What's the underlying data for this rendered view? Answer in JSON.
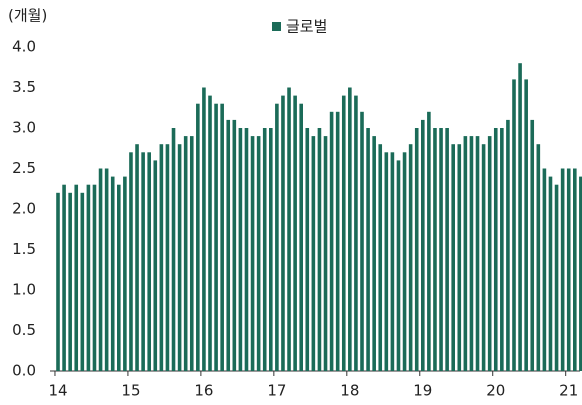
{
  "chart_data": {
    "type": "bar",
    "y_axis_label": "(개월)",
    "series": [
      {
        "name": "글로벌",
        "color": "#1b6b58",
        "values": [
          2.2,
          2.3,
          2.2,
          2.3,
          2.2,
          2.3,
          2.3,
          2.5,
          2.5,
          2.4,
          2.3,
          2.4,
          2.7,
          2.8,
          2.7,
          2.7,
          2.6,
          2.8,
          2.8,
          3.0,
          2.8,
          2.9,
          2.9,
          3.3,
          3.5,
          3.4,
          3.3,
          3.3,
          3.1,
          3.1,
          3.0,
          3.0,
          2.9,
          2.9,
          3.0,
          3.0,
          3.3,
          3.4,
          3.5,
          3.4,
          3.3,
          3.0,
          2.9,
          3.0,
          2.9,
          3.2,
          3.2,
          3.4,
          3.5,
          3.4,
          3.2,
          3.0,
          2.9,
          2.8,
          2.7,
          2.7,
          2.6,
          2.7,
          2.8,
          3.0,
          3.1,
          3.2,
          3.0,
          3.0,
          3.0,
          2.8,
          2.8,
          2.9,
          2.9,
          2.9,
          2.8,
          2.9,
          3.0,
          3.0,
          3.1,
          3.6,
          3.8,
          3.6,
          3.1,
          2.8,
          2.5,
          2.4,
          2.3,
          2.5,
          2.5,
          2.5,
          2.4
        ]
      }
    ],
    "categories": [
      "14",
      null,
      null,
      null,
      null,
      null,
      null,
      null,
      null,
      null,
      null,
      null,
      "15",
      null,
      null,
      null,
      null,
      null,
      null,
      null,
      null,
      null,
      null,
      null,
      "16",
      null,
      null,
      null,
      null,
      null,
      null,
      null,
      null,
      null,
      null,
      null,
      "17",
      null,
      null,
      null,
      null,
      null,
      null,
      null,
      null,
      null,
      null,
      null,
      "18",
      null,
      null,
      null,
      null,
      null,
      null,
      null,
      null,
      null,
      null,
      null,
      "19",
      null,
      null,
      null,
      null,
      null,
      null,
      null,
      null,
      null,
      null,
      null,
      "20",
      null,
      null,
      null,
      null,
      null,
      null,
      null,
      null,
      null,
      null,
      null,
      "21",
      null,
      null
    ],
    "ylim": [
      0,
      4
    ],
    "yticks": [
      {
        "value": 0,
        "label": "0.0"
      },
      {
        "value": 0.5,
        "label": "0.5"
      },
      {
        "value": 1,
        "label": "1.0"
      },
      {
        "value": 1.5,
        "label": "1.5"
      },
      {
        "value": 2,
        "label": "2.0"
      },
      {
        "value": 2.5,
        "label": "2.5"
      },
      {
        "value": 3,
        "label": "3.0"
      },
      {
        "value": 3.5,
        "label": "3.5"
      },
      {
        "value": 4,
        "label": "4.0"
      }
    ],
    "legend": "top"
  }
}
